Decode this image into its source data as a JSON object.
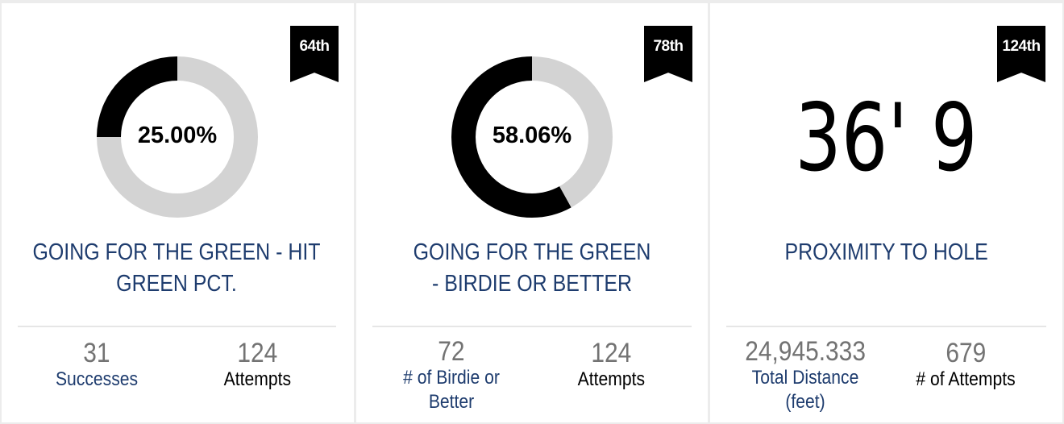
{
  "cards": [
    {
      "rank": "64th",
      "value_text": "25.00%",
      "percent": 25.0,
      "title": "GOING FOR THE GREEN - HIT GREEN PCT.",
      "stats": [
        {
          "value": "31",
          "label": "Successes"
        },
        {
          "value": "124",
          "label": "Attempts"
        }
      ]
    },
    {
      "rank": "78th",
      "value_text": "58.06%",
      "percent": 58.06,
      "title": "GOING FOR THE GREEN - BIRDIE OR BETTER",
      "stats": [
        {
          "value": "72",
          "label": "# of Birdie or Better"
        },
        {
          "value": "124",
          "label": "Attempts"
        }
      ]
    },
    {
      "rank": "124th",
      "value_text": "36' 9",
      "title": "PROXIMITY TO HOLE",
      "stats": [
        {
          "value": "24,945.333",
          "label": "Total Distance (feet)"
        },
        {
          "value": "679",
          "label": "# of Attempts"
        }
      ]
    }
  ],
  "colors": {
    "donut_fill": "#000000",
    "donut_track": "#d3d3d3",
    "title": "#1e3c6e",
    "stat_value": "#737373"
  }
}
